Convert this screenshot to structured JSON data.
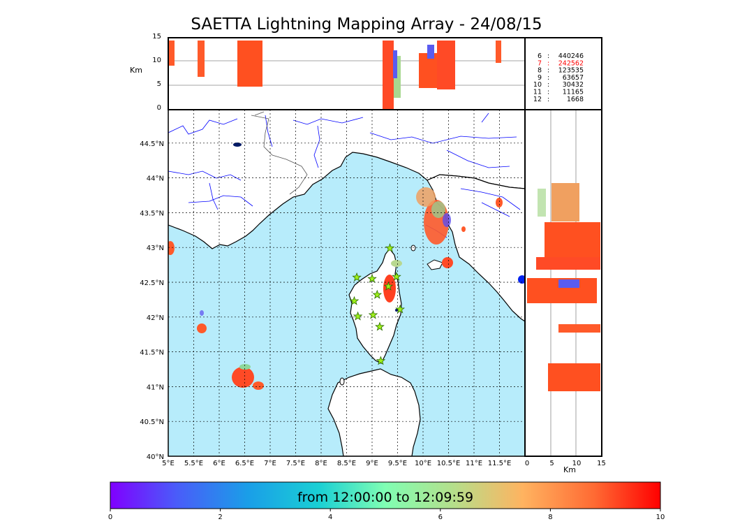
{
  "title": "SAETTA Lightning Mapping Array - 24/08/15",
  "top_panel": {
    "y_label": "Km",
    "y_ticks": [
      "0",
      "5",
      "10",
      "15"
    ]
  },
  "map": {
    "lon_ticks": [
      "5°E",
      "5.5°E",
      "6°E",
      "6.5°E",
      "7°E",
      "7.5°E",
      "8°E",
      "8.5°E",
      "9°E",
      "9.5°E",
      "10°E",
      "10.5°E",
      "11°E",
      "11.5°E"
    ],
    "lat_ticks": [
      "40°N",
      "40.5°N",
      "41°N",
      "41.5°N",
      "42°N",
      "42.5°N",
      "43°N",
      "43.5°N",
      "44°N",
      "44.5°N"
    ],
    "colors": {
      "sea": "#b7ecfb",
      "land": "#ffffff",
      "river": "#0000ff",
      "station": "#9ef01a"
    }
  },
  "side_panel": {
    "x_label": "Km",
    "x_ticks": [
      "0",
      "5",
      "10",
      "15"
    ]
  },
  "station_counts": [
    {
      "station": "6",
      "count": "440246",
      "color": "#000000"
    },
    {
      "station": "7",
      "count": "242562",
      "color": "#ff0000"
    },
    {
      "station": "8",
      "count": "123535",
      "color": "#000000"
    },
    {
      "station": "9",
      "count": "63657",
      "color": "#000000"
    },
    {
      "station": "10",
      "count": "30432",
      "color": "#000000"
    },
    {
      "station": "11",
      "count": "11165",
      "color": "#000000"
    },
    {
      "station": "12",
      "count": "1668",
      "color": "#000000"
    }
  ],
  "colorbar": {
    "label": "from 12:00:00 to 12:09:59",
    "ticks": [
      "0",
      "2",
      "4",
      "6",
      "8",
      "10"
    ],
    "colormap": "rainbow"
  }
}
